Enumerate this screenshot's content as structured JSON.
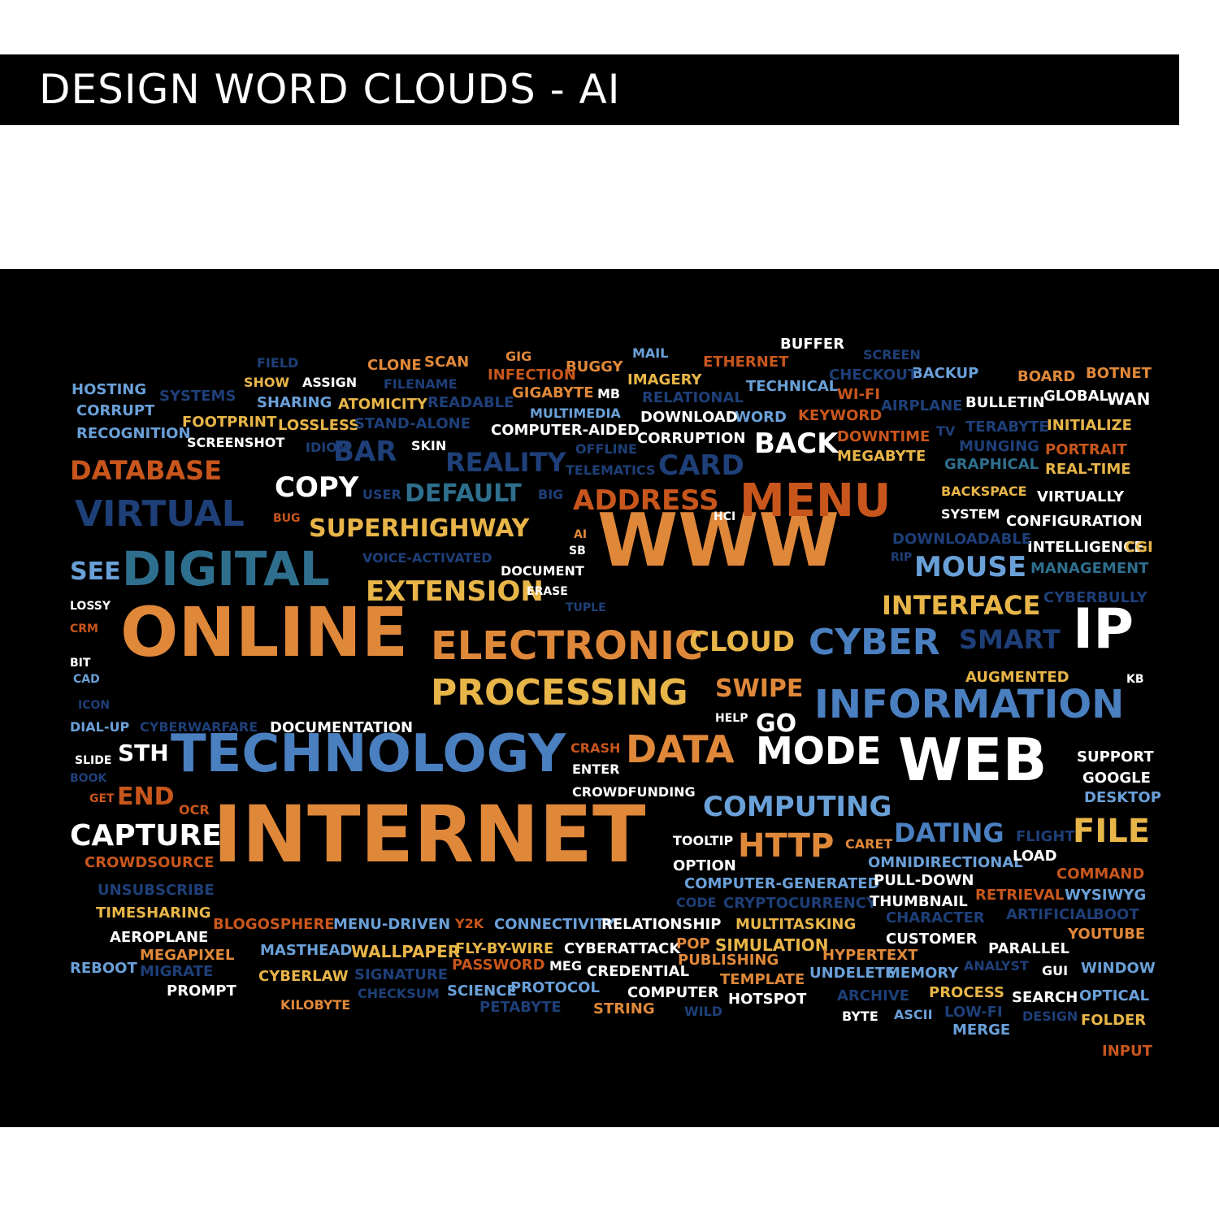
{
  "title": "DESIGN WORD CLOUDS - AI",
  "words": [
    {
      "text": "INTERNET",
      "color": "orange",
      "size": 96
    },
    {
      "text": "WWW",
      "color": "orange",
      "size": 90
    },
    {
      "text": "ONLINE",
      "color": "orange",
      "size": 84
    },
    {
      "text": "TECHNOLOGY",
      "color": "blue",
      "size": 64
    },
    {
      "text": "DIGITAL",
      "color": "teal",
      "size": 58
    },
    {
      "text": "WEB",
      "color": "white",
      "size": 72
    },
    {
      "text": "IP",
      "color": "white",
      "size": 68
    },
    {
      "text": "INFORMATION",
      "color": "blue",
      "size": 48
    },
    {
      "text": "ELECTRONIC",
      "color": "orange",
      "size": 48
    },
    {
      "text": "PROCESSING",
      "color": "yellow",
      "size": 44
    },
    {
      "text": "MENU",
      "color": "rust",
      "size": 56
    },
    {
      "text": "VIRTUAL",
      "color": "navy",
      "size": 44
    },
    {
      "text": "CYBER",
      "color": "blue",
      "size": 44
    },
    {
      "text": "MODE",
      "color": "white",
      "size": 46
    },
    {
      "text": "DATA",
      "color": "orange",
      "size": 46
    },
    {
      "text": "COMPUTING",
      "color": "sky",
      "size": 34
    },
    {
      "text": "HTTP",
      "color": "orange",
      "size": 40
    },
    {
      "text": "FILE",
      "color": "yellow",
      "size": 40
    },
    {
      "text": "CAPTURE",
      "color": "white",
      "size": 36
    },
    {
      "text": "EXTENSION",
      "color": "yellow",
      "size": 34
    },
    {
      "text": "SUPERHIGHWAY",
      "color": "yellow",
      "size": 30
    },
    {
      "text": "CLOUD",
      "color": "yellow",
      "size": 34
    },
    {
      "text": "MOUSE",
      "color": "sky",
      "size": 34
    },
    {
      "text": "INTERFACE",
      "color": "yellow",
      "size": 32
    },
    {
      "text": "SMART",
      "color": "navy",
      "size": 32
    },
    {
      "text": "SWIPE",
      "color": "orange",
      "size": 30
    },
    {
      "text": "DATING",
      "color": "blue",
      "size": 32
    },
    {
      "text": "ADDRESS",
      "color": "rust",
      "size": 34
    },
    {
      "text": "DATABASE",
      "color": "rust",
      "size": 32
    },
    {
      "text": "DEFAULT",
      "color": "teal",
      "size": 30
    },
    {
      "text": "REALITY",
      "color": "navy",
      "size": 32
    },
    {
      "text": "CARD",
      "color": "navy",
      "size": 34
    },
    {
      "text": "BAR",
      "color": "navy",
      "size": 34
    },
    {
      "text": "COPY",
      "color": "white",
      "size": 34
    },
    {
      "text": "BACK",
      "color": "white",
      "size": 34
    },
    {
      "text": "SEE",
      "color": "sky",
      "size": 30
    },
    {
      "text": "GO",
      "color": "white",
      "size": 30
    },
    {
      "text": "END",
      "color": "rust",
      "size": 30
    },
    {
      "text": "STH",
      "color": "white",
      "size": 28
    },
    {
      "text": "DOCUMENTATION",
      "color": "white",
      "size": 18
    },
    {
      "text": "CYBERWARFARE",
      "color": "navy",
      "size": 16
    },
    {
      "text": "DIAL-UP",
      "color": "sky",
      "size": 16
    },
    {
      "text": "ICON",
      "color": "navy",
      "size": 14
    },
    {
      "text": "CAD",
      "color": "sky",
      "size": 14
    },
    {
      "text": "BIT",
      "color": "white",
      "size": 14
    },
    {
      "text": "CRM",
      "color": "rust",
      "size": 14
    },
    {
      "text": "LOSSY",
      "color": "white",
      "size": 14
    },
    {
      "text": "SLIDE",
      "color": "white",
      "size": 14
    },
    {
      "text": "BOOK",
      "color": "navy",
      "size": 14
    },
    {
      "text": "GET",
      "color": "rust",
      "size": 14
    },
    {
      "text": "OCR",
      "color": "rust",
      "size": 16
    },
    {
      "text": "CROWDSOURCE",
      "color": "rust",
      "size": 18
    },
    {
      "text": "UNSUBSCRIBE",
      "color": "navy",
      "size": 18
    },
    {
      "text": "TIMESHARING",
      "color": "yellow",
      "size": 18
    },
    {
      "text": "AEROPLANE",
      "color": "white",
      "size": 18
    },
    {
      "text": "REBOOT",
      "color": "sky",
      "size": 18
    },
    {
      "text": "MEGAPIXEL",
      "color": "orange",
      "size": 18
    },
    {
      "text": "MIGRATE",
      "color": "navy",
      "size": 18
    },
    {
      "text": "PROMPT",
      "color": "white",
      "size": 18
    },
    {
      "text": "BLOGOSPHERE",
      "color": "rust",
      "size": 18
    },
    {
      "text": "MENU-DRIVEN",
      "color": "sky",
      "size": 18
    },
    {
      "text": "MASTHEAD",
      "color": "sky",
      "size": 18
    },
    {
      "text": "WALLPAPER",
      "color": "yellow",
      "size": 20
    },
    {
      "text": "CYBERLAW",
      "color": "yellow",
      "size": 18
    },
    {
      "text": "SIGNATURE",
      "color": "navy",
      "size": 18
    },
    {
      "text": "KILOBYTE",
      "color": "orange",
      "size": 16
    },
    {
      "text": "CHECKSUM",
      "color": "navy",
      "size": 16
    },
    {
      "text": "Y2K",
      "color": "rust",
      "size": 16
    },
    {
      "text": "CONNECTIVITY",
      "color": "sky",
      "size": 18
    },
    {
      "text": "FLY-BY-WIRE",
      "color": "yellow",
      "size": 18
    },
    {
      "text": "PASSWORD",
      "color": "rust",
      "size": 18
    },
    {
      "text": "SCIENCE",
      "color": "sky",
      "size": 18
    },
    {
      "text": "PROTOCOL",
      "color": "sky",
      "size": 18
    },
    {
      "text": "PETABYTE",
      "color": "navy",
      "size": 18
    },
    {
      "text": "RELATIONSHIP",
      "color": "white",
      "size": 18
    },
    {
      "text": "CYBERATTACK",
      "color": "white",
      "size": 18
    },
    {
      "text": "MEG",
      "color": "white",
      "size": 16
    },
    {
      "text": "CREDENTIAL",
      "color": "white",
      "size": 18
    },
    {
      "text": "COMPUTER",
      "color": "white",
      "size": 18
    },
    {
      "text": "STRING",
      "color": "orange",
      "size": 18
    },
    {
      "text": "WILD",
      "color": "navy",
      "size": 16
    },
    {
      "text": "POP",
      "color": "orange",
      "size": 18
    },
    {
      "text": "SIMULATION",
      "color": "yellow",
      "size": 20
    },
    {
      "text": "PUBLISHING",
      "color": "orange",
      "size": 18
    },
    {
      "text": "TEMPLATE",
      "color": "orange",
      "size": 18
    },
    {
      "text": "HOTSPOT",
      "color": "white",
      "size": 18
    },
    {
      "text": "MULTITASKING",
      "color": "yellow",
      "size": 18
    },
    {
      "text": "CODE",
      "color": "navy",
      "size": 16
    },
    {
      "text": "CRYPTOCURRENCY",
      "color": "navy",
      "size": 18
    },
    {
      "text": "COMPUTER-GENERATED",
      "color": "sky",
      "size": 18
    },
    {
      "text": "OPTION",
      "color": "white",
      "size": 18
    },
    {
      "text": "TOOLTIP",
      "color": "white",
      "size": 16
    },
    {
      "text": "CARET",
      "color": "orange",
      "size": 16
    },
    {
      "text": "OMNIDIRECTIONAL",
      "color": "sky",
      "size": 18
    },
    {
      "text": "LOAD",
      "color": "white",
      "size": 18
    },
    {
      "text": "FLIGHT",
      "color": "navy",
      "size": 18
    },
    {
      "text": "PULL-DOWN",
      "color": "white",
      "size": 18
    },
    {
      "text": "THUMBNAIL",
      "color": "white",
      "size": 18
    },
    {
      "text": "CHARACTER",
      "color": "navy",
      "size": 18
    },
    {
      "text": "CUSTOMER",
      "color": "white",
      "size": 18
    },
    {
      "text": "HYPERTEXT",
      "color": "orange",
      "size": 18
    },
    {
      "text": "UNDELETE",
      "color": "sky",
      "size": 18
    },
    {
      "text": "MEMORY",
      "color": "sky",
      "size": 18
    },
    {
      "text": "ARCHIVE",
      "color": "navy",
      "size": 18
    },
    {
      "text": "PROCESS",
      "color": "yellow",
      "size": 18
    },
    {
      "text": "BYTE",
      "color": "white",
      "size": 16
    },
    {
      "text": "ASCII",
      "color": "sky",
      "size": 16
    },
    {
      "text": "LOW-FI",
      "color": "navy",
      "size": 18
    },
    {
      "text": "MERGE",
      "color": "sky",
      "size": 18
    },
    {
      "text": "ANALYST",
      "color": "navy",
      "size": 16
    },
    {
      "text": "PARALLEL",
      "color": "white",
      "size": 18
    },
    {
      "text": "GUI",
      "color": "white",
      "size": 16
    },
    {
      "text": "SEARCH",
      "color": "white",
      "size": 18
    },
    {
      "text": "DESIGN",
      "color": "navy",
      "size": 16
    },
    {
      "text": "WINDOW",
      "color": "sky",
      "size": 18
    },
    {
      "text": "OPTICAL",
      "color": "sky",
      "size": 18
    },
    {
      "text": "FOLDER",
      "color": "yellow",
      "size": 18
    },
    {
      "text": "INPUT",
      "color": "rust",
      "size": 18
    },
    {
      "text": "YOUTUBE",
      "color": "orange",
      "size": 18
    },
    {
      "text": "BOOT",
      "color": "navy",
      "size": 18
    },
    {
      "text": "ARTIFICIAL",
      "color": "navy",
      "size": 18
    },
    {
      "text": "RETRIEVAL",
      "color": "rust",
      "size": 18
    },
    {
      "text": "WYSIWYG",
      "color": "sky",
      "size": 18
    },
    {
      "text": "COMMAND",
      "color": "rust",
      "size": 18
    },
    {
      "text": "DESKTOP",
      "color": "sky",
      "size": 18
    },
    {
      "text": "GOOGLE",
      "color": "white",
      "size": 18
    },
    {
      "text": "SUPPORT",
      "color": "white",
      "size": 18
    },
    {
      "text": "KB",
      "color": "white",
      "size": 14
    },
    {
      "text": "AUGMENTED",
      "color": "yellow",
      "size": 18
    },
    {
      "text": "CYBERBULLY",
      "color": "navy",
      "size": 18
    },
    {
      "text": "MANAGEMENT",
      "color": "teal",
      "size": 18
    },
    {
      "text": "INTELLIGENCE",
      "color": "white",
      "size": 18
    },
    {
      "text": "CGI",
      "color": "yellow",
      "size": 18
    },
    {
      "text": "DOWNLOADABLE",
      "color": "navy",
      "size": 18
    },
    {
      "text": "RIP",
      "color": "navy",
      "size": 14
    },
    {
      "text": "CONFIGURATION",
      "color": "white",
      "size": 18
    },
    {
      "text": "SYSTEM",
      "color": "white",
      "size": 16
    },
    {
      "text": "VIRTUALLY",
      "color": "white",
      "size": 18
    },
    {
      "text": "BACKSPACE",
      "color": "yellow",
      "size": 16
    },
    {
      "text": "REAL-TIME",
      "color": "yellow",
      "size": 18
    },
    {
      "text": "PORTRAIT",
      "color": "rust",
      "size": 18
    },
    {
      "text": "GRAPHICAL",
      "color": "teal",
      "size": 18
    },
    {
      "text": "MUNGING",
      "color": "navy",
      "size": 18
    },
    {
      "text": "INITIALIZE",
      "color": "yellow",
      "size": 18
    },
    {
      "text": "TERABYTE",
      "color": "navy",
      "size": 18
    },
    {
      "text": "TV",
      "color": "navy",
      "size": 16
    },
    {
      "text": "MEGABYTE",
      "color": "yellow",
      "size": 18
    },
    {
      "text": "DOWNTIME",
      "color": "rust",
      "size": 18
    },
    {
      "text": "KEYWORD",
      "color": "rust",
      "size": 18
    },
    {
      "text": "WORD",
      "color": "sky",
      "size": 18
    },
    {
      "text": "BULLETIN",
      "color": "white",
      "size": 18
    },
    {
      "text": "GLOBAL",
      "color": "white",
      "size": 18
    },
    {
      "text": "WAN",
      "color": "white",
      "size": 20
    },
    {
      "text": "BOARD",
      "color": "orange",
      "size": 18
    },
    {
      "text": "BOTNET",
      "color": "orange",
      "size": 18
    },
    {
      "text": "AIRPLANE",
      "color": "navy",
      "size": 18
    },
    {
      "text": "WI-FI",
      "color": "rust",
      "size": 18
    },
    {
      "text": "BACKUP",
      "color": "sky",
      "size": 18
    },
    {
      "text": "CHECKOUT",
      "color": "navy",
      "size": 18
    },
    {
      "text": "SCREEN",
      "color": "navy",
      "size": 16
    },
    {
      "text": "TECHNICAL",
      "color": "sky",
      "size": 18
    },
    {
      "text": "BUFFER",
      "color": "white",
      "size": 18
    },
    {
      "text": "ETHERNET",
      "color": "rust",
      "size": 18
    },
    {
      "text": "MAIL",
      "color": "sky",
      "size": 16
    },
    {
      "text": "RELATIONAL",
      "color": "navy",
      "size": 18
    },
    {
      "text": "IMAGERY",
      "color": "yellow",
      "size": 18
    },
    {
      "text": "BUGGY",
      "color": "orange",
      "size": 18
    },
    {
      "text": "GIG",
      "color": "orange",
      "size": 16
    },
    {
      "text": "INFECTION",
      "color": "rust",
      "size": 18
    },
    {
      "text": "GIGABYTE",
      "color": "orange",
      "size": 18
    },
    {
      "text": "MB",
      "color": "white",
      "size": 16
    },
    {
      "text": "DOWNLOAD",
      "color": "white",
      "size": 18
    },
    {
      "text": "CORRUPTION",
      "color": "white",
      "size": 18
    },
    {
      "text": "COMPUTER-AIDED",
      "color": "white",
      "size": 18
    },
    {
      "text": "MULTIMEDIA",
      "color": "sky",
      "size": 16
    },
    {
      "text": "OFFLINE",
      "color": "navy",
      "size": 16
    },
    {
      "text": "TELEMATICS",
      "color": "navy",
      "size": 16
    },
    {
      "text": "SKIN",
      "color": "white",
      "size": 16
    },
    {
      "text": "BIG",
      "color": "navy",
      "size": 16
    },
    {
      "text": "USER",
      "color": "navy",
      "size": 16
    },
    {
      "text": "BUG",
      "color": "rust",
      "size": 14
    },
    {
      "text": "IDIOM",
      "color": "navy",
      "size": 16
    },
    {
      "text": "SCREENSHOT",
      "color": "white",
      "size": 16
    },
    {
      "text": "LOSSLESS",
      "color": "yellow",
      "size": 18
    },
    {
      "text": "STAND-ALONE",
      "color": "navy",
      "size": 18
    },
    {
      "text": "READABLE",
      "color": "navy",
      "size": 18
    },
    {
      "text": "ATOMICITY",
      "color": "yellow",
      "size": 18
    },
    {
      "text": "SHARING",
      "color": "sky",
      "size": 18
    },
    {
      "text": "SHOW",
      "color": "yellow",
      "size": 16
    },
    {
      "text": "ASSIGN",
      "color": "white",
      "size": 16
    },
    {
      "text": "FILENAME",
      "color": "navy",
      "size": 16
    },
    {
      "text": "CLONE",
      "color": "orange",
      "size": 18
    },
    {
      "text": "SCAN",
      "color": "orange",
      "size": 18
    },
    {
      "text": "FIELD",
      "color": "navy",
      "size": 16
    },
    {
      "text": "HOSTING",
      "color": "sky",
      "size": 18
    },
    {
      "text": "SYSTEMS",
      "color": "navy",
      "size": 18
    },
    {
      "text": "CORRUPT",
      "color": "sky",
      "size": 18
    },
    {
      "text": "FOOTPRINT",
      "color": "yellow",
      "size": 18
    },
    {
      "text": "RECOGNITION",
      "color": "sky",
      "size": 18
    },
    {
      "text": "VOICE-ACTIVATED",
      "color": "navy",
      "size": 16
    },
    {
      "text": "HCI",
      "color": "white",
      "size": 14
    },
    {
      "text": "AI",
      "color": "orange",
      "size": 14
    },
    {
      "text": "SB",
      "color": "white",
      "size": 14
    },
    {
      "text": "DOCUMENT",
      "color": "white",
      "size": 16
    },
    {
      "text": "ERASE",
      "color": "white",
      "size": 14
    },
    {
      "text": "TUPLE",
      "color": "navy",
      "size": 14
    },
    {
      "text": "HELP",
      "color": "white",
      "size": 14
    },
    {
      "text": "CRASH",
      "color": "rust",
      "size": 16
    },
    {
      "text": "ENTER",
      "color": "white",
      "size": 16
    },
    {
      "text": "CROWDFUNDING",
      "color": "white",
      "size": 16
    }
  ]
}
